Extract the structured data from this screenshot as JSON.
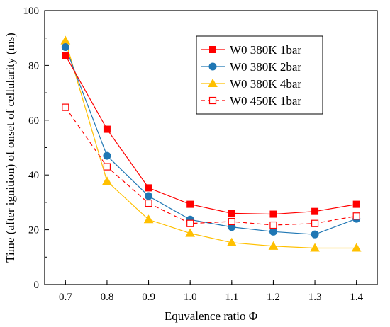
{
  "chart_data": {
    "type": "line",
    "title": "",
    "xlabel": "Equvalence ratio Φ",
    "ylabel": "Time (after ignition) of onset of cellularity (ms)",
    "xlim": [
      0.65,
      1.45
    ],
    "ylim": [
      0,
      100
    ],
    "xticks": [
      0.7,
      0.8,
      0.9,
      1.0,
      1.1,
      1.2,
      1.3,
      1.4
    ],
    "xtick_labels": [
      "0.7",
      "0.8",
      "0.9",
      "1.0",
      "1.1",
      "1.2",
      "1.3",
      "1.4"
    ],
    "yticks": [
      0,
      20,
      40,
      60,
      80,
      100
    ],
    "ytick_labels": [
      "0",
      "20",
      "40",
      "60",
      "80",
      "100"
    ],
    "grid": false,
    "legend_position": "top-right",
    "x": [
      0.7,
      0.8,
      0.9,
      1.0,
      1.1,
      1.2,
      1.3,
      1.4
    ],
    "series": [
      {
        "name": "W0 380K 1bar",
        "color": "#ff0000",
        "marker": "square",
        "line": "solid",
        "values": [
          83.7,
          56.7,
          35.3,
          29.3,
          26.0,
          25.7,
          26.7,
          29.3
        ]
      },
      {
        "name": "W0 380K 2bar",
        "color": "#1f77b4",
        "marker": "circle",
        "line": "solid",
        "values": [
          86.7,
          47.0,
          32.3,
          23.7,
          21.0,
          19.3,
          18.3,
          24.0
        ]
      },
      {
        "name": "W0 380K 4bar",
        "color": "#ffc000",
        "marker": "triangle",
        "line": "solid",
        "values": [
          89.0,
          37.7,
          23.7,
          18.7,
          15.3,
          14.0,
          13.3,
          13.3
        ]
      },
      {
        "name": "W0 450K 1bar",
        "color": "#ff0000",
        "marker": "open-square",
        "line": "dashed",
        "values": [
          64.7,
          43.0,
          29.7,
          22.3,
          23.0,
          21.7,
          22.3,
          25.0
        ]
      }
    ]
  }
}
